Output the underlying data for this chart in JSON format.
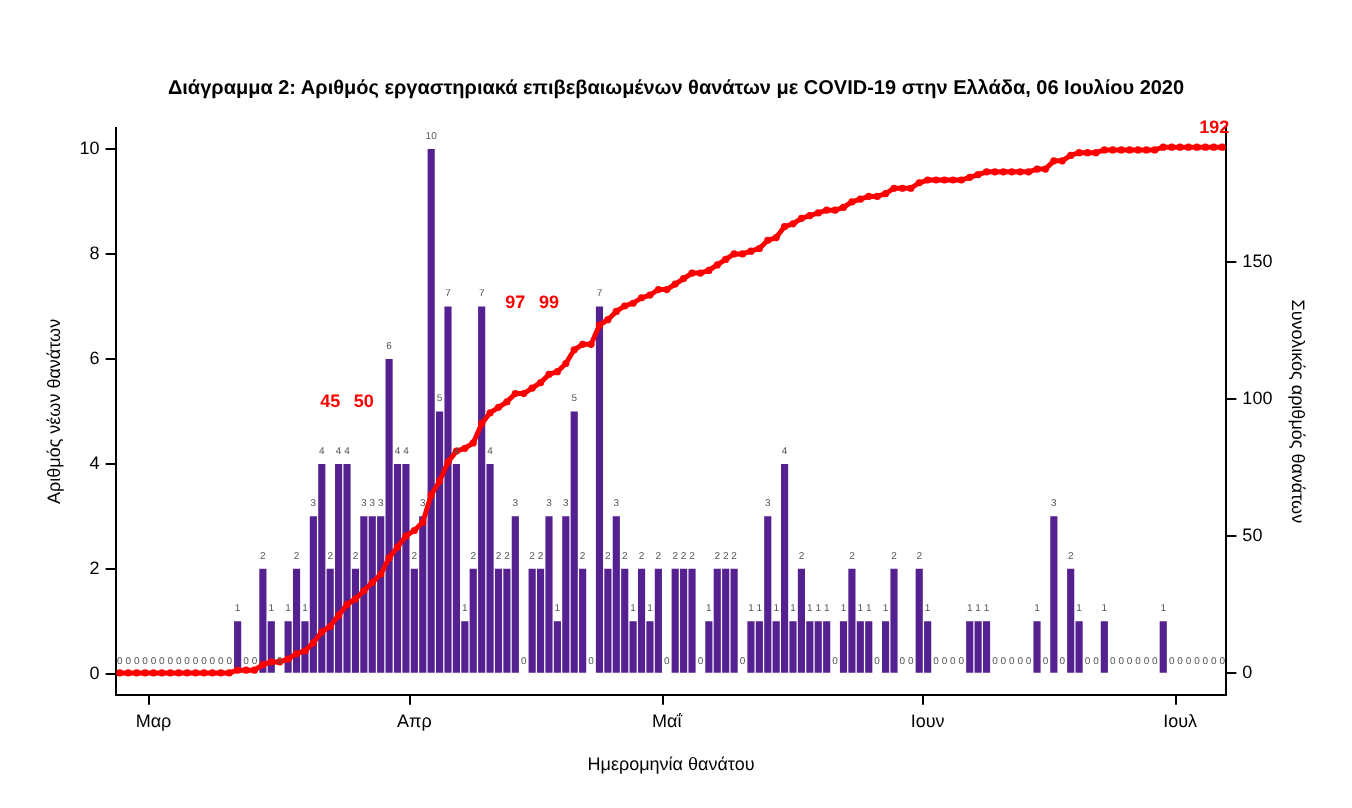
{
  "chart_data": {
    "type": "bar",
    "title": "Διάγραμμα 2: Αριθμός εργαστηριακά επιβεβαιωμένων θανάτων με COVID-19 στην Ελλάδα, 06 Ιουλίου 2020",
    "xlabel": "Ημερομηνία θανάτου",
    "ylabel": "Αριθμός νέων θανάτων",
    "y2label": "Συνολικός αριθμός θανάτων",
    "categories": [
      null,
      null,
      null,
      null,
      "Μαρ",
      null,
      null,
      null,
      null,
      null,
      null,
      null,
      null,
      null,
      null,
      null,
      null,
      null,
      null,
      null,
      null,
      null,
      null,
      null,
      null,
      null,
      null,
      null,
      null,
      null,
      null,
      null,
      null,
      null,
      null,
      "Απρ",
      null,
      null,
      null,
      null,
      null,
      null,
      null,
      null,
      null,
      null,
      null,
      null,
      null,
      null,
      null,
      null,
      null,
      null,
      null,
      null,
      null,
      null,
      null,
      null,
      null,
      null,
      null,
      null,
      null,
      "Μαΐ",
      null,
      null,
      null,
      null,
      null,
      null,
      null,
      null,
      null,
      null,
      null,
      null,
      null,
      null,
      null,
      null,
      null,
      null,
      null,
      null,
      null,
      null,
      null,
      null,
      null,
      null,
      null,
      null,
      null,
      null,
      "Ιουν",
      null,
      null,
      null,
      null,
      null,
      null,
      null,
      null,
      null,
      null,
      null,
      null,
      null,
      null,
      null,
      null,
      null,
      null,
      null,
      null,
      null,
      null,
      null,
      null,
      null,
      null,
      null,
      null,
      null,
      "Ιουλ",
      null,
      null,
      null,
      null,
      null
    ],
    "series": [
      {
        "color": "#55208f",
        "value_labels": [
          "0",
          "0",
          "0",
          "0",
          "0",
          "0",
          "0",
          "0",
          "0",
          "0",
          "0",
          "0",
          "0",
          "0",
          "1",
          "0",
          "0",
          "2",
          "1",
          "0",
          "1",
          "2",
          "1",
          "3",
          "4",
          "2",
          "4",
          "4",
          "2",
          "3",
          "3",
          "3",
          "6",
          "4",
          "4",
          "2",
          "3",
          "10",
          "5",
          "7",
          "4",
          "1",
          "2",
          "7",
          "4",
          "2",
          "2",
          "3",
          "0",
          "2",
          "2",
          "3",
          "1",
          "3",
          "5",
          "2",
          "0",
          "7",
          "2",
          "3",
          "2",
          "1",
          "2",
          "1",
          "2",
          "0",
          "2",
          "2",
          "2",
          "0",
          "1",
          "2",
          "2",
          "2",
          "0",
          "1",
          "1",
          "3",
          "1",
          "4",
          "1",
          "2",
          "1",
          "1",
          "1",
          "0",
          "1",
          "2",
          "1",
          "1",
          "0",
          "1",
          "2",
          "0",
          "0",
          "2",
          "1",
          "0",
          "0",
          "0",
          "0",
          "1",
          "1",
          "1",
          "0",
          "0",
          "0",
          "0",
          "0",
          "1",
          "0",
          "3",
          "0",
          "2",
          "1",
          "0",
          "0",
          "1",
          "0",
          "0",
          "0",
          "0",
          "0",
          "0",
          "1",
          "0",
          "0",
          "0",
          "0",
          "0",
          "0",
          "0"
        ],
        "values": [
          0,
          0,
          0,
          0,
          0,
          0,
          0,
          0,
          0,
          0,
          0,
          0,
          0,
          0,
          1,
          0,
          0,
          2,
          1,
          0,
          1,
          2,
          1,
          3,
          4,
          2,
          4,
          4,
          2,
          3,
          3,
          3,
          6,
          4,
          4,
          2,
          3,
          10,
          5,
          7,
          4,
          1,
          2,
          7,
          4,
          2,
          2,
          3,
          0,
          2,
          2,
          3,
          1,
          3,
          5,
          2,
          0,
          7,
          2,
          3,
          2,
          1,
          2,
          1,
          2,
          0,
          2,
          2,
          2,
          0,
          1,
          2,
          2,
          2,
          0,
          1,
          1,
          3,
          1,
          4,
          1,
          2,
          1,
          1,
          1,
          0,
          1,
          2,
          1,
          1,
          0,
          1,
          2,
          0,
          0,
          2,
          1,
          0,
          0,
          0,
          0,
          1,
          1,
          1,
          0,
          0,
          0,
          0,
          0,
          1,
          0,
          3,
          0,
          2,
          1,
          0,
          0,
          1,
          0,
          0,
          0,
          0,
          0,
          0,
          1,
          0,
          0,
          0,
          0,
          0,
          0,
          0
        ]
      },
      {
        "type": "line",
        "axis": "y2",
        "color": "#ff0000",
        "values": [
          0,
          0,
          0,
          0,
          0,
          0,
          0,
          0,
          0,
          0,
          0,
          0,
          0,
          0,
          1,
          1,
          1,
          3,
          4,
          4,
          5,
          7,
          8,
          11,
          15,
          17,
          21,
          25,
          27,
          30,
          33,
          36,
          42,
          46,
          50,
          52,
          55,
          65,
          70,
          77,
          81,
          82,
          84,
          91,
          95,
          97,
          99,
          102,
          102,
          104,
          106,
          109,
          110,
          113,
          118,
          120,
          120,
          127,
          129,
          132,
          134,
          135,
          137,
          138,
          140,
          140,
          142,
          144,
          146,
          146,
          147,
          149,
          151,
          153,
          153,
          154,
          155,
          158,
          159,
          163,
          164,
          166,
          167,
          168,
          169,
          169,
          170,
          172,
          173,
          174,
          174,
          175,
          177,
          177,
          177,
          179,
          180,
          180,
          180,
          180,
          180,
          181,
          182,
          183,
          183,
          183,
          183,
          183,
          183,
          184,
          184,
          187,
          187,
          189,
          190,
          190,
          190,
          191,
          191,
          191,
          191,
          191,
          191,
          191,
          192,
          192,
          192,
          192,
          192,
          192,
          192,
          192
        ]
      }
    ],
    "ylim": [
      -0.4,
      10.4
    ],
    "yticks": [
      0,
      2,
      4,
      6,
      8,
      10
    ],
    "y2lim": [
      -8,
      199
    ],
    "y2ticks": [
      0,
      50,
      100,
      150
    ],
    "annotations": [
      "45",
      "50",
      "97",
      "99",
      "192"
    ],
    "marker": "circle",
    "grid": false,
    "legend": false
  }
}
